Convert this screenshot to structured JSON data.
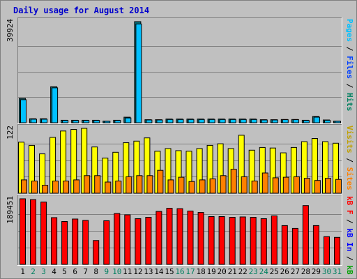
{
  "title": "Daily usage for August 2014",
  "days": [
    "1",
    "2",
    "3",
    "4",
    "5",
    "6",
    "7",
    "8",
    "9",
    "10",
    "11",
    "12",
    "13",
    "14",
    "15",
    "16",
    "17",
    "18",
    "19",
    "20",
    "21",
    "22",
    "23",
    "24",
    "25",
    "26",
    "27",
    "28",
    "29",
    "30",
    "31"
  ],
  "weekend_days": [
    2,
    3,
    9,
    10,
    16,
    17,
    23,
    24,
    30,
    31
  ],
  "colors": {
    "background": "#c0c0c0",
    "title": "#0000cc",
    "pages": "#00c0ff",
    "files": "#0040ff",
    "hits": "#008060",
    "visits": "#ffff00",
    "visitors": "#ffa040",
    "sites": "#ff8000",
    "kb_f": "#ff0000",
    "kb_in": "#0000ff",
    "kb_out": "#00a000",
    "day_weekday": "#000000",
    "day_weekend": "#008060"
  },
  "chart_data": [
    {
      "type": "bar",
      "ymax_label": "39924",
      "ylim": [
        0,
        39924
      ],
      "legend": [
        {
          "text": "Pages",
          "color": "#00c0ff"
        },
        {
          "text": " / ",
          "color": "#000000"
        },
        {
          "text": "Files",
          "color": "#0040ff"
        },
        {
          "text": " / ",
          "color": "#000000"
        },
        {
          "text": "Hits",
          "color": "#008060"
        }
      ],
      "series": [
        {
          "name": "Hits",
          "color": "#0a6e78",
          "values": [
            9600,
            1600,
            1600,
            14200,
            1000,
            1000,
            1000,
            1000,
            700,
            1000,
            2200,
            39924,
            1200,
            1200,
            1500,
            1500,
            1500,
            1500,
            1500,
            1500,
            1500,
            1500,
            1500,
            1200,
            1200,
            1300,
            1300,
            1000,
            2500,
            1100,
            700
          ]
        },
        {
          "name": "Pages",
          "color": "#00c0ff",
          "values": [
            9100,
            1400,
            1400,
            13800,
            900,
            900,
            900,
            900,
            600,
            900,
            1900,
            39000,
            1100,
            1100,
            1300,
            1300,
            1300,
            1300,
            1300,
            1300,
            1300,
            1300,
            1300,
            1100,
            1100,
            1200,
            1200,
            900,
            2200,
            1000,
            600
          ]
        }
      ]
    },
    {
      "type": "bar",
      "ymax_label": "122",
      "ylim": [
        0,
        122
      ],
      "legend": [
        {
          "text": "Visits",
          "color": "#c0a000"
        },
        {
          "text": " / ",
          "color": "#000000"
        },
        {
          "text": "Sites",
          "color": "#ff8000"
        }
      ],
      "series": [
        {
          "name": "Visits",
          "color": "#ffff00",
          "values": [
            96,
            90,
            74,
            105,
            117,
            120,
            122,
            87,
            66,
            77,
            95,
            98,
            104,
            79,
            84,
            80,
            79,
            84,
            90,
            93,
            84,
            109,
            81,
            86,
            85,
            76,
            86,
            97,
            103,
            97,
            94
          ]
        },
        {
          "name": "Sites",
          "color": "#ff8000",
          "values": [
            25,
            23,
            15,
            23,
            23,
            25,
            33,
            33,
            21,
            23,
            31,
            33,
            33,
            43,
            25,
            30,
            22,
            25,
            27,
            33,
            45,
            31,
            23,
            38,
            29,
            30,
            31,
            28,
            24,
            28,
            26
          ]
        }
      ]
    },
    {
      "type": "bar",
      "ymax_label": "189451",
      "ylim": [
        0,
        189451
      ],
      "legend": [
        {
          "text": "kB F",
          "color": "#ff0000"
        },
        {
          "text": " / ",
          "color": "#000000"
        },
        {
          "text": "kB In",
          "color": "#0000ff"
        },
        {
          "text": " / ",
          "color": "#000000"
        },
        {
          "text": "kB Out",
          "color": "#00a000"
        }
      ],
      "series": [
        {
          "name": "kB F",
          "color": "#ff0000",
          "values": [
            189451,
            187000,
            180000,
            135000,
            124000,
            131000,
            127000,
            69000,
            126000,
            147000,
            143000,
            132000,
            136000,
            153000,
            162000,
            161000,
            154000,
            150000,
            138000,
            138000,
            136000,
            137000,
            136000,
            132000,
            140000,
            112000,
            104000,
            170000,
            112000,
            80000,
            78000
          ]
        }
      ]
    }
  ]
}
